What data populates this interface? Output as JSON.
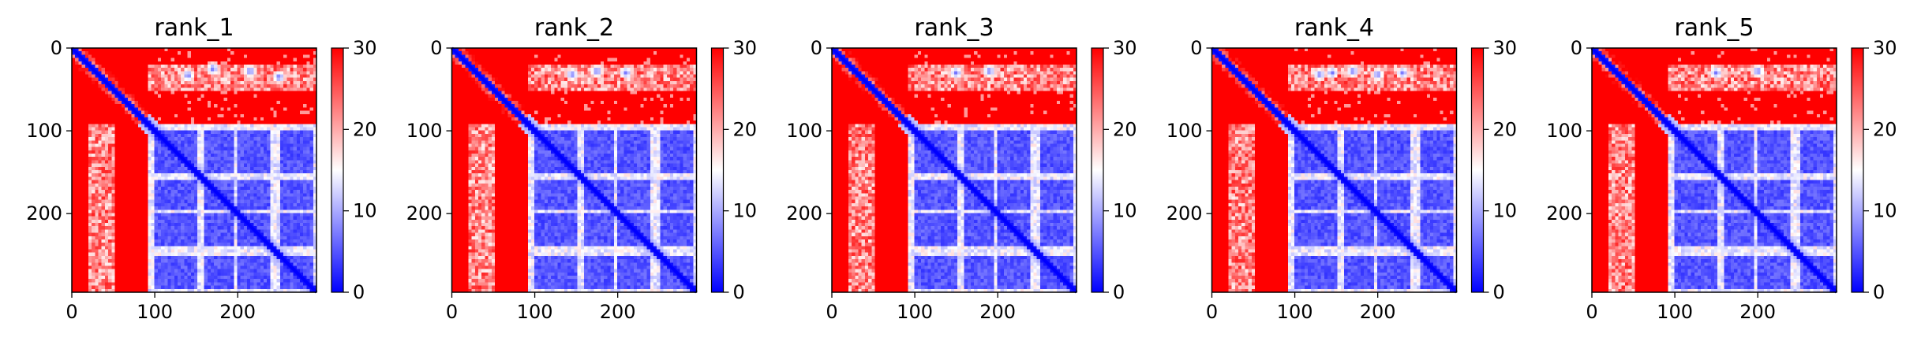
{
  "figure": {
    "colorbar": {
      "ticks": [
        "0",
        "10",
        "20",
        "30"
      ],
      "colors": [
        "#0000ff",
        "#ffffff",
        "#ff0000"
      ],
      "vmin": 0,
      "vmax": 30
    }
  },
  "chart_data": [
    {
      "type": "heatmap",
      "title": "rank_1",
      "xlabel": "",
      "ylabel": "",
      "x_ticks": [
        "0",
        "100",
        "200"
      ],
      "y_ticks": [
        "0",
        "100",
        "200"
      ],
      "xlim": [
        0,
        295
      ],
      "ylim": [
        295,
        0
      ],
      "colorbar_range": [
        0,
        30
      ],
      "colormap": "bwr",
      "description_values": {
        "diagonal_value": 0,
        "domain1_range": [
          0,
          90
        ],
        "domain2_range": [
          90,
          295
        ],
        "domain2_blocks": [
          [
            100,
            150
          ],
          [
            160,
            195
          ],
          [
            200,
            240
          ],
          [
            250,
            290
          ]
        ],
        "strip_range": [
          20,
          50
        ],
        "background_value": 30
      },
      "hotspots": [
        [
          33,
          140
        ],
        [
          25,
          170
        ],
        [
          28,
          215
        ],
        [
          35,
          250
        ]
      ]
    },
    {
      "type": "heatmap",
      "title": "rank_2",
      "xlabel": "",
      "ylabel": "",
      "x_ticks": [
        "0",
        "100",
        "200"
      ],
      "y_ticks": [
        "0",
        "100",
        "200"
      ],
      "xlim": [
        0,
        295
      ],
      "ylim": [
        295,
        0
      ],
      "colorbar_range": [
        0,
        30
      ],
      "colormap": "bwr",
      "description_values": {
        "diagonal_value": 0,
        "domain1_range": [
          0,
          90
        ],
        "domain2_range": [
          90,
          295
        ],
        "domain2_blocks": [
          [
            100,
            150
          ],
          [
            160,
            195
          ],
          [
            200,
            240
          ],
          [
            250,
            290
          ]
        ],
        "strip_range": [
          20,
          50
        ],
        "background_value": 30
      },
      "hotspots": [
        [
          32,
          145
        ],
        [
          28,
          175
        ],
        [
          30,
          210
        ]
      ]
    },
    {
      "type": "heatmap",
      "title": "rank_3",
      "xlabel": "",
      "ylabel": "",
      "x_ticks": [
        "0",
        "100",
        "200"
      ],
      "y_ticks": [
        "0",
        "100",
        "200"
      ],
      "xlim": [
        0,
        295
      ],
      "ylim": [
        295,
        0
      ],
      "colorbar_range": [
        0,
        30
      ],
      "colormap": "bwr",
      "description_values": {
        "diagonal_value": 0,
        "domain1_range": [
          0,
          90
        ],
        "domain2_range": [
          90,
          295
        ],
        "domain2_blocks": [
          [
            100,
            150
          ],
          [
            160,
            195
          ],
          [
            200,
            240
          ],
          [
            250,
            290
          ]
        ],
        "strip_range": [
          20,
          50
        ],
        "background_value": 30
      },
      "hotspots": [
        [
          30,
          150
        ],
        [
          28,
          190
        ]
      ]
    },
    {
      "type": "heatmap",
      "title": "rank_4",
      "xlabel": "",
      "ylabel": "",
      "x_ticks": [
        "0",
        "100",
        "200"
      ],
      "y_ticks": [
        "0",
        "100",
        "200"
      ],
      "xlim": [
        0,
        295
      ],
      "ylim": [
        295,
        0
      ],
      "colorbar_range": [
        0,
        30
      ],
      "colormap": "bwr",
      "description_values": {
        "diagonal_value": 0,
        "domain1_range": [
          0,
          90
        ],
        "domain2_range": [
          90,
          295
        ],
        "domain2_blocks": [
          [
            100,
            150
          ],
          [
            160,
            195
          ],
          [
            200,
            240
          ],
          [
            250,
            290
          ]
        ],
        "strip_range": [
          20,
          50
        ],
        "background_value": 30
      },
      "hotspots": [
        [
          32,
          130
        ],
        [
          30,
          145
        ],
        [
          28,
          170
        ],
        [
          32,
          200
        ],
        [
          30,
          230
        ]
      ]
    },
    {
      "type": "heatmap",
      "title": "rank_5",
      "xlabel": "",
      "ylabel": "",
      "x_ticks": [
        "0",
        "100",
        "200"
      ],
      "y_ticks": [
        "0",
        "100",
        "200"
      ],
      "xlim": [
        0,
        295
      ],
      "ylim": [
        295,
        0
      ],
      "colorbar_range": [
        0,
        30
      ],
      "colormap": "bwr",
      "description_values": {
        "diagonal_value": 0,
        "domain1_range": [
          0,
          90
        ],
        "domain2_range": [
          90,
          295
        ],
        "domain2_blocks": [
          [
            100,
            150
          ],
          [
            160,
            195
          ],
          [
            200,
            240
          ],
          [
            250,
            290
          ]
        ],
        "strip_range": [
          20,
          50
        ],
        "background_value": 30
      },
      "hotspots": [
        [
          30,
          150
        ],
        [
          28,
          200
        ]
      ]
    }
  ]
}
